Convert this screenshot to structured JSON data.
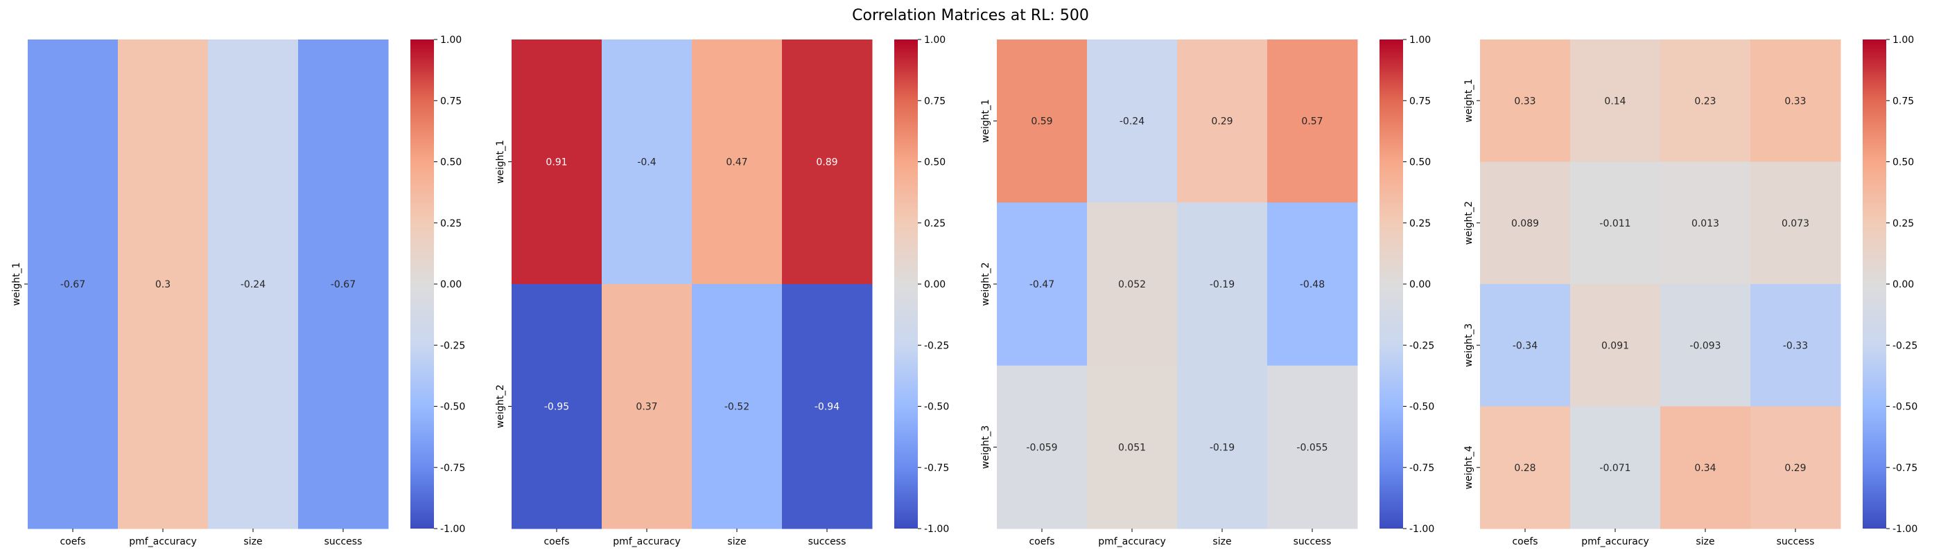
{
  "title": "Correlation Matrices at RL: 500",
  "colormap": {
    "name": "coolwarm",
    "stops": [
      "#3b4cc0",
      "#6a8cef",
      "#9abbff",
      "#c9d7f0",
      "#dddcdc",
      "#f2cbb7",
      "#f7a889",
      "#e26952",
      "#b40426"
    ]
  },
  "chart_data": [
    {
      "type": "heatmap",
      "columns": [
        "coefs",
        "pmf_accuracy",
        "size",
        "success"
      ],
      "rows": [
        "weight_1"
      ],
      "values": [
        [
          -0.67,
          0.3,
          -0.24,
          -0.67
        ]
      ],
      "labels": [
        [
          "-0.67",
          "0.3",
          "-0.24",
          "-0.67"
        ]
      ],
      "vmin": -1,
      "vmax": 1,
      "colorbar_ticks": [
        "1.00",
        "0.75",
        "0.50",
        "0.25",
        "0.00",
        "-0.25",
        "-0.50",
        "-0.75",
        "-1.00"
      ]
    },
    {
      "type": "heatmap",
      "columns": [
        "coefs",
        "pmf_accuracy",
        "size",
        "success"
      ],
      "rows": [
        "weight_1",
        "weight_2"
      ],
      "values": [
        [
          0.91,
          -0.4,
          0.47,
          0.89
        ],
        [
          -0.95,
          0.37,
          -0.52,
          -0.94
        ]
      ],
      "labels": [
        [
          "0.91",
          "-0.4",
          "0.47",
          "0.89"
        ],
        [
          "-0.95",
          "0.37",
          "-0.52",
          "-0.94"
        ]
      ],
      "vmin": -1,
      "vmax": 1,
      "colorbar_ticks": [
        "1.00",
        "0.75",
        "0.50",
        "0.25",
        "0.00",
        "-0.25",
        "-0.50",
        "-0.75",
        "-1.00"
      ]
    },
    {
      "type": "heatmap",
      "columns": [
        "coefs",
        "pmf_accuracy",
        "size",
        "success"
      ],
      "rows": [
        "weight_1",
        "weight_2",
        "weight_3"
      ],
      "values": [
        [
          0.59,
          -0.24,
          0.29,
          0.57
        ],
        [
          -0.47,
          0.052,
          -0.19,
          -0.48
        ],
        [
          -0.059,
          0.051,
          -0.19,
          -0.055
        ]
      ],
      "labels": [
        [
          "0.59",
          "-0.24",
          "0.29",
          "0.57"
        ],
        [
          "-0.47",
          "0.052",
          "-0.19",
          "-0.48"
        ],
        [
          "-0.059",
          "0.051",
          "-0.19",
          "-0.055"
        ]
      ],
      "vmin": -1,
      "vmax": 1,
      "colorbar_ticks": [
        "1.00",
        "0.75",
        "0.50",
        "0.25",
        "0.00",
        "-0.25",
        "-0.50",
        "-0.75",
        "-1.00"
      ]
    },
    {
      "type": "heatmap",
      "columns": [
        "coefs",
        "pmf_accuracy",
        "size",
        "success"
      ],
      "rows": [
        "weight_1",
        "weight_2",
        "weight_3",
        "weight_4"
      ],
      "values": [
        [
          0.33,
          0.14,
          0.23,
          0.33
        ],
        [
          0.089,
          -0.011,
          0.013,
          0.073
        ],
        [
          -0.34,
          0.091,
          -0.093,
          -0.33
        ],
        [
          0.28,
          -0.071,
          0.34,
          0.29
        ]
      ],
      "labels": [
        [
          "0.33",
          "0.14",
          "0.23",
          "0.33"
        ],
        [
          "0.089",
          "-0.011",
          "0.013",
          "0.073"
        ],
        [
          "-0.34",
          "0.091",
          "-0.093",
          "-0.33"
        ],
        [
          "0.28",
          "-0.071",
          "0.34",
          "0.29"
        ]
      ],
      "vmin": -1,
      "vmax": 1,
      "colorbar_ticks": [
        "1.00",
        "0.75",
        "0.50",
        "0.25",
        "0.00",
        "-0.25",
        "-0.50",
        "-0.75",
        "-1.00"
      ]
    }
  ]
}
